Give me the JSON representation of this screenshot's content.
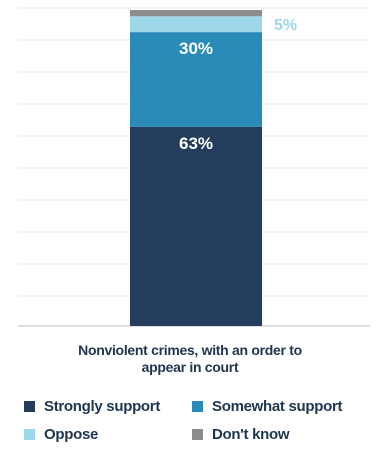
{
  "chart_data": {
    "type": "bar",
    "stacked": true,
    "categories": [
      "Nonviolent crimes, with an order to appear in court"
    ],
    "series": [
      {
        "name": "Strongly support",
        "values": [
          63
        ],
        "color": "#253d5c",
        "label": "63%"
      },
      {
        "name": "Somewhat support",
        "values": [
          30
        ],
        "color": "#2a8ab8",
        "label": "30%"
      },
      {
        "name": "Oppose",
        "values": [
          5
        ],
        "color": "#9ed6ea",
        "label": "5%"
      },
      {
        "name": "Don't know",
        "values": [
          2
        ],
        "color": "#8a8c8e",
        "label": ""
      }
    ],
    "ylim": [
      0,
      100
    ],
    "grid": true,
    "legend_position": "bottom"
  },
  "legend": [
    {
      "label": "Strongly support",
      "color": "#253d5c"
    },
    {
      "label": "Somewhat support",
      "color": "#2a8ab8"
    },
    {
      "label": "Oppose",
      "color": "#9ed6ea"
    },
    {
      "label": "Don't know",
      "color": "#8a8c8e"
    }
  ]
}
